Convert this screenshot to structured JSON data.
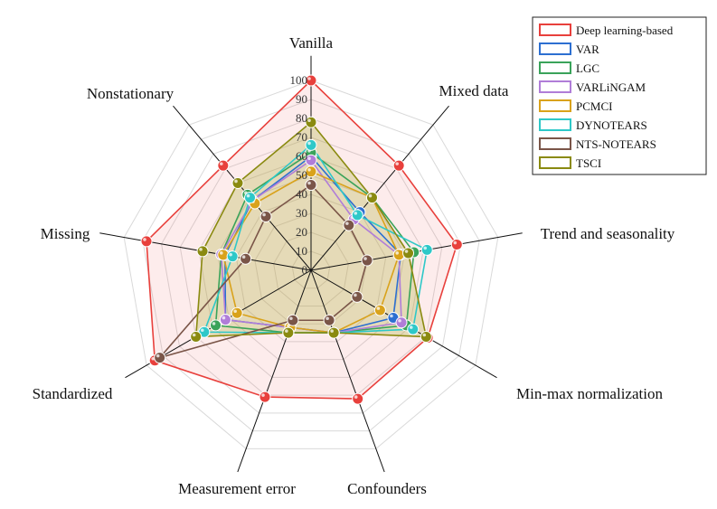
{
  "chart_data": {
    "type": "radar",
    "axes": [
      "Vanilla",
      "Mixed data",
      "Trend and seasonality",
      "Min-max normalization",
      "Confounders",
      "Measurement error",
      "Standardized",
      "Missing",
      "Nonstationary"
    ],
    "rlim": [
      0,
      100
    ],
    "ticks": [
      0,
      10,
      20,
      30,
      40,
      50,
      60,
      70,
      80,
      90,
      100
    ],
    "grid": true,
    "legend_position": "top-right",
    "series": [
      {
        "name": "Deep learning-based",
        "color": "#e8403c",
        "fill": "rgba(240,100,100,0.12)",
        "values": [
          100,
          72,
          78,
          71,
          72,
          71,
          95,
          88,
          72
        ]
      },
      {
        "name": "VAR",
        "color": "#2d6fd1",
        "fill": "none",
        "values": [
          60,
          40,
          48,
          50,
          35,
          32,
          52,
          46,
          48
        ]
      },
      {
        "name": "LGC",
        "color": "#3aa35a",
        "fill": "none",
        "values": [
          62,
          50,
          55,
          58,
          35,
          35,
          58,
          48,
          52
        ]
      },
      {
        "name": "VARLiNGAM",
        "color": "#b07dd8",
        "fill": "none",
        "values": [
          58,
          35,
          47,
          55,
          35,
          32,
          52,
          48,
          48
        ]
      },
      {
        "name": "PCMCI",
        "color": "#d9a21b",
        "fill": "none",
        "values": [
          52,
          50,
          47,
          42,
          35,
          32,
          45,
          47,
          46
        ]
      },
      {
        "name": "DYNOTEARS",
        "color": "#2ec8c8",
        "fill": "none",
        "values": [
          66,
          38,
          62,
          62,
          35,
          35,
          65,
          42,
          50
        ]
      },
      {
        "name": "NTS-NOTEARS",
        "color": "#7a5548",
        "fill": "none",
        "values": [
          45,
          31,
          30,
          28,
          28,
          28,
          92,
          35,
          37
        ]
      },
      {
        "name": "TSCI",
        "color": "#8a8a10",
        "fill": "rgba(175,175,60,0.30)",
        "values": [
          78,
          50,
          52,
          70,
          35,
          35,
          70,
          58,
          60
        ]
      }
    ]
  }
}
